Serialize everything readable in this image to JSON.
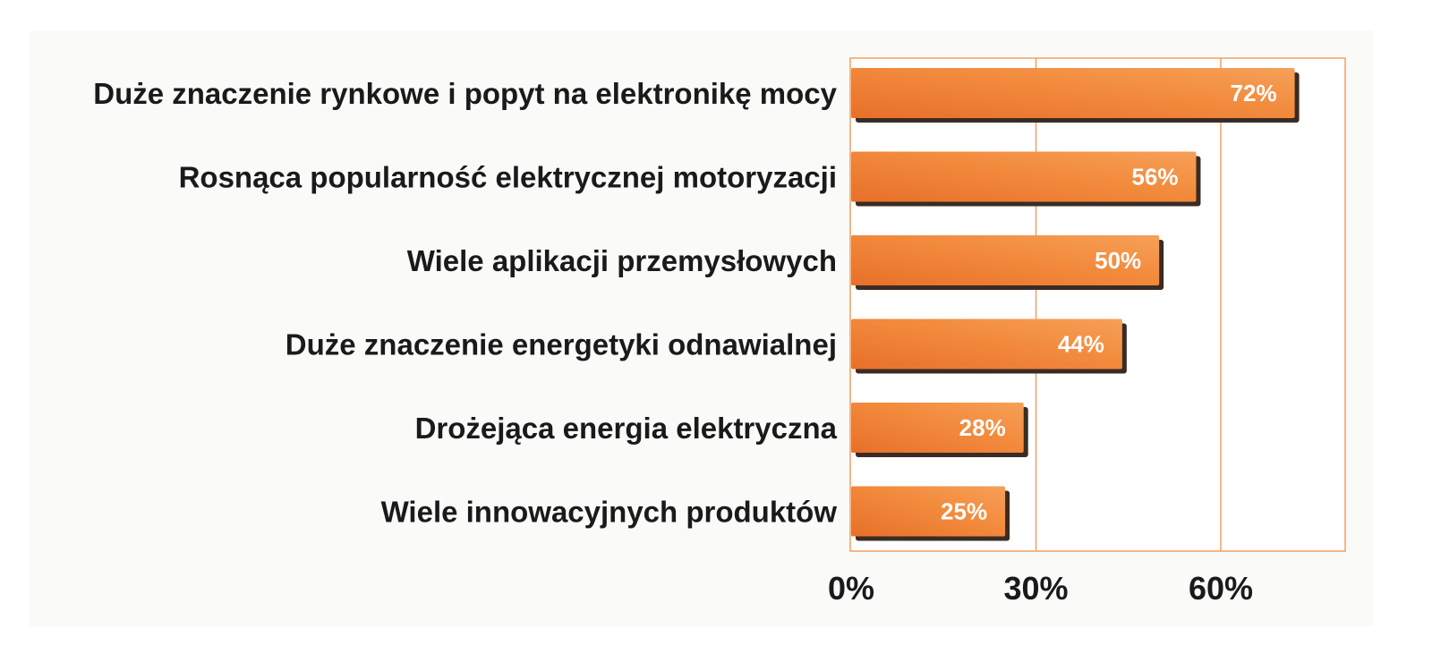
{
  "chart_data": {
    "type": "bar",
    "orientation": "horizontal",
    "categories": [
      "Duże znaczenie rynkowe i popyt na elektronikę mocy",
      "Rosnąca popularność elektrycznej motoryzacji",
      "Wiele aplikacji przemysłowych",
      "Duże znaczenie energetyki odnawialnej",
      "Drożejąca energia elektryczna",
      "Wiele innowacyjnych produktów"
    ],
    "values": [
      72,
      56,
      50,
      44,
      28,
      25
    ],
    "value_labels": [
      "72%",
      "56%",
      "50%",
      "44%",
      "28%",
      "25%"
    ],
    "x_ticks": [
      0,
      30,
      60
    ],
    "x_tick_labels": [
      "0%",
      "30%",
      "60%"
    ],
    "xlim": [
      0,
      80
    ],
    "grid": true,
    "title": "",
    "xlabel": "",
    "ylabel": "",
    "colors": {
      "bar_light": "#f6a057",
      "bar_mid": "#f28a3c",
      "bar_dark": "#e8702a",
      "bar_shadow": "#3a2c24",
      "plot_border": "#f0a060",
      "gridline": "#f0a060",
      "plot_background": "#ffffff",
      "panel_background": "#fafaf9"
    }
  }
}
